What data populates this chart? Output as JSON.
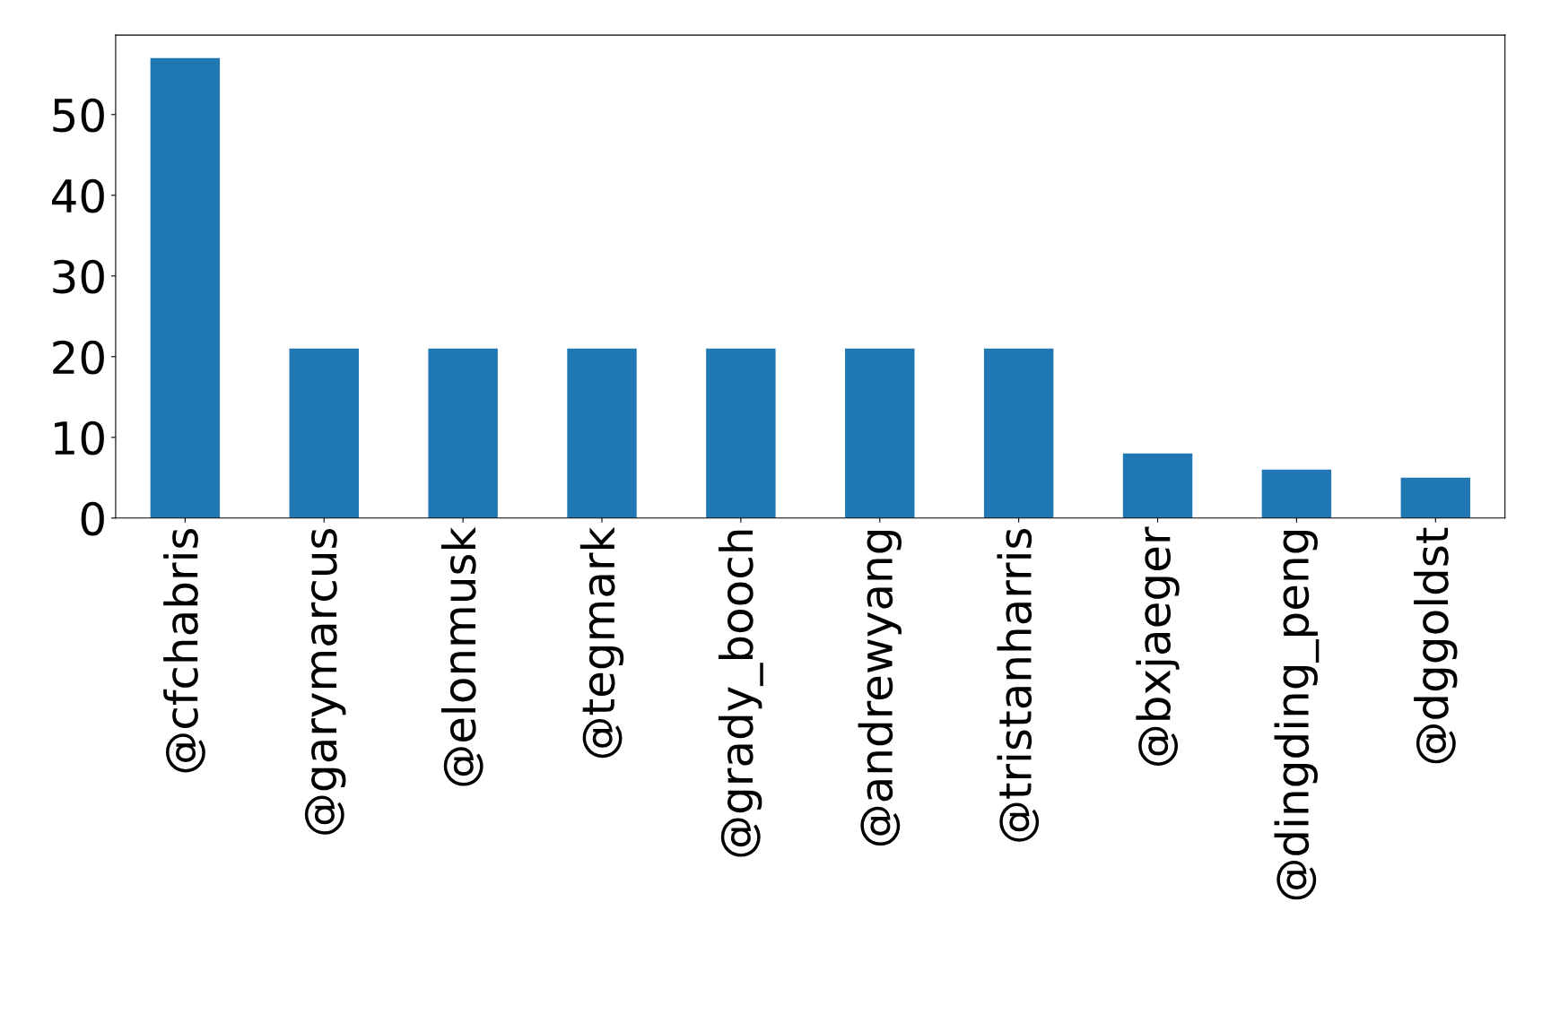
{
  "chart_data": {
    "type": "bar",
    "categories": [
      "@cfchabris",
      "@garymarcus",
      "@elonmusk",
      "@tegmark",
      "@grady_booch",
      "@andrewyang",
      "@tristanharris",
      "@bxjaeger",
      "@dingding_peng",
      "@dggoldst"
    ],
    "values": [
      57,
      21,
      21,
      21,
      21,
      21,
      21,
      8,
      6,
      5
    ],
    "color": "#1f77b4",
    "ylim": [
      0,
      59.85
    ],
    "yticks": [
      0,
      10,
      20,
      30,
      40,
      50
    ],
    "grid": false,
    "legend": false
  }
}
